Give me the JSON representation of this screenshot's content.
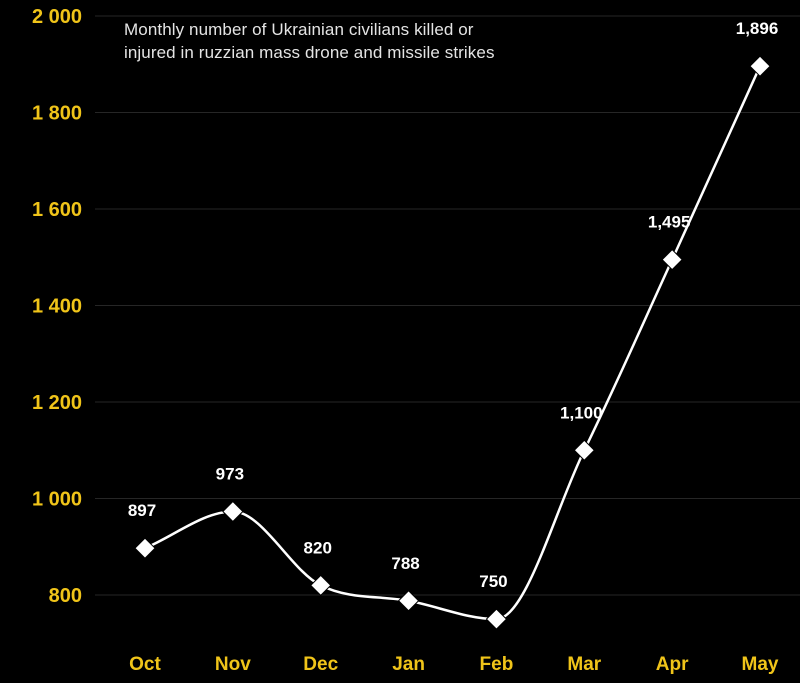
{
  "chart_data": {
    "type": "line",
    "title_lines": [
      "Monthly number of Ukrainian civilians killed or",
      "injured in ruzzian mass drone and missile strikes"
    ],
    "categories": [
      "Oct",
      "Nov",
      "Dec",
      "Jan",
      "Feb",
      "Mar",
      "Apr",
      "May"
    ],
    "series": [
      {
        "values": [
          897,
          973,
          820,
          788,
          750,
          1100,
          1495,
          1896
        ]
      }
    ],
    "data_labels": [
      "897",
      "973",
      "820",
      "788",
      "750",
      "1,100",
      "1,495",
      "1,896"
    ],
    "y_ticks": [
      {
        "value": 800,
        "label": "800"
      },
      {
        "value": 1000,
        "label": "1 000"
      },
      {
        "value": 1200,
        "label": "1 200"
      },
      {
        "value": 1400,
        "label": "1 400"
      },
      {
        "value": 1600,
        "label": "1 600"
      },
      {
        "value": 1800,
        "label": "1 800"
      },
      {
        "value": 2000,
        "label": "2 000"
      }
    ],
    "ylim": [
      700,
      2000
    ],
    "grid": true,
    "marker": "diamond",
    "colors": {
      "background": "#000000",
      "line": "#ffffff",
      "tick_labels": "#f0c419",
      "data_labels": "#ffffff",
      "title": "#e4e4e4",
      "grid": "#262626"
    }
  }
}
